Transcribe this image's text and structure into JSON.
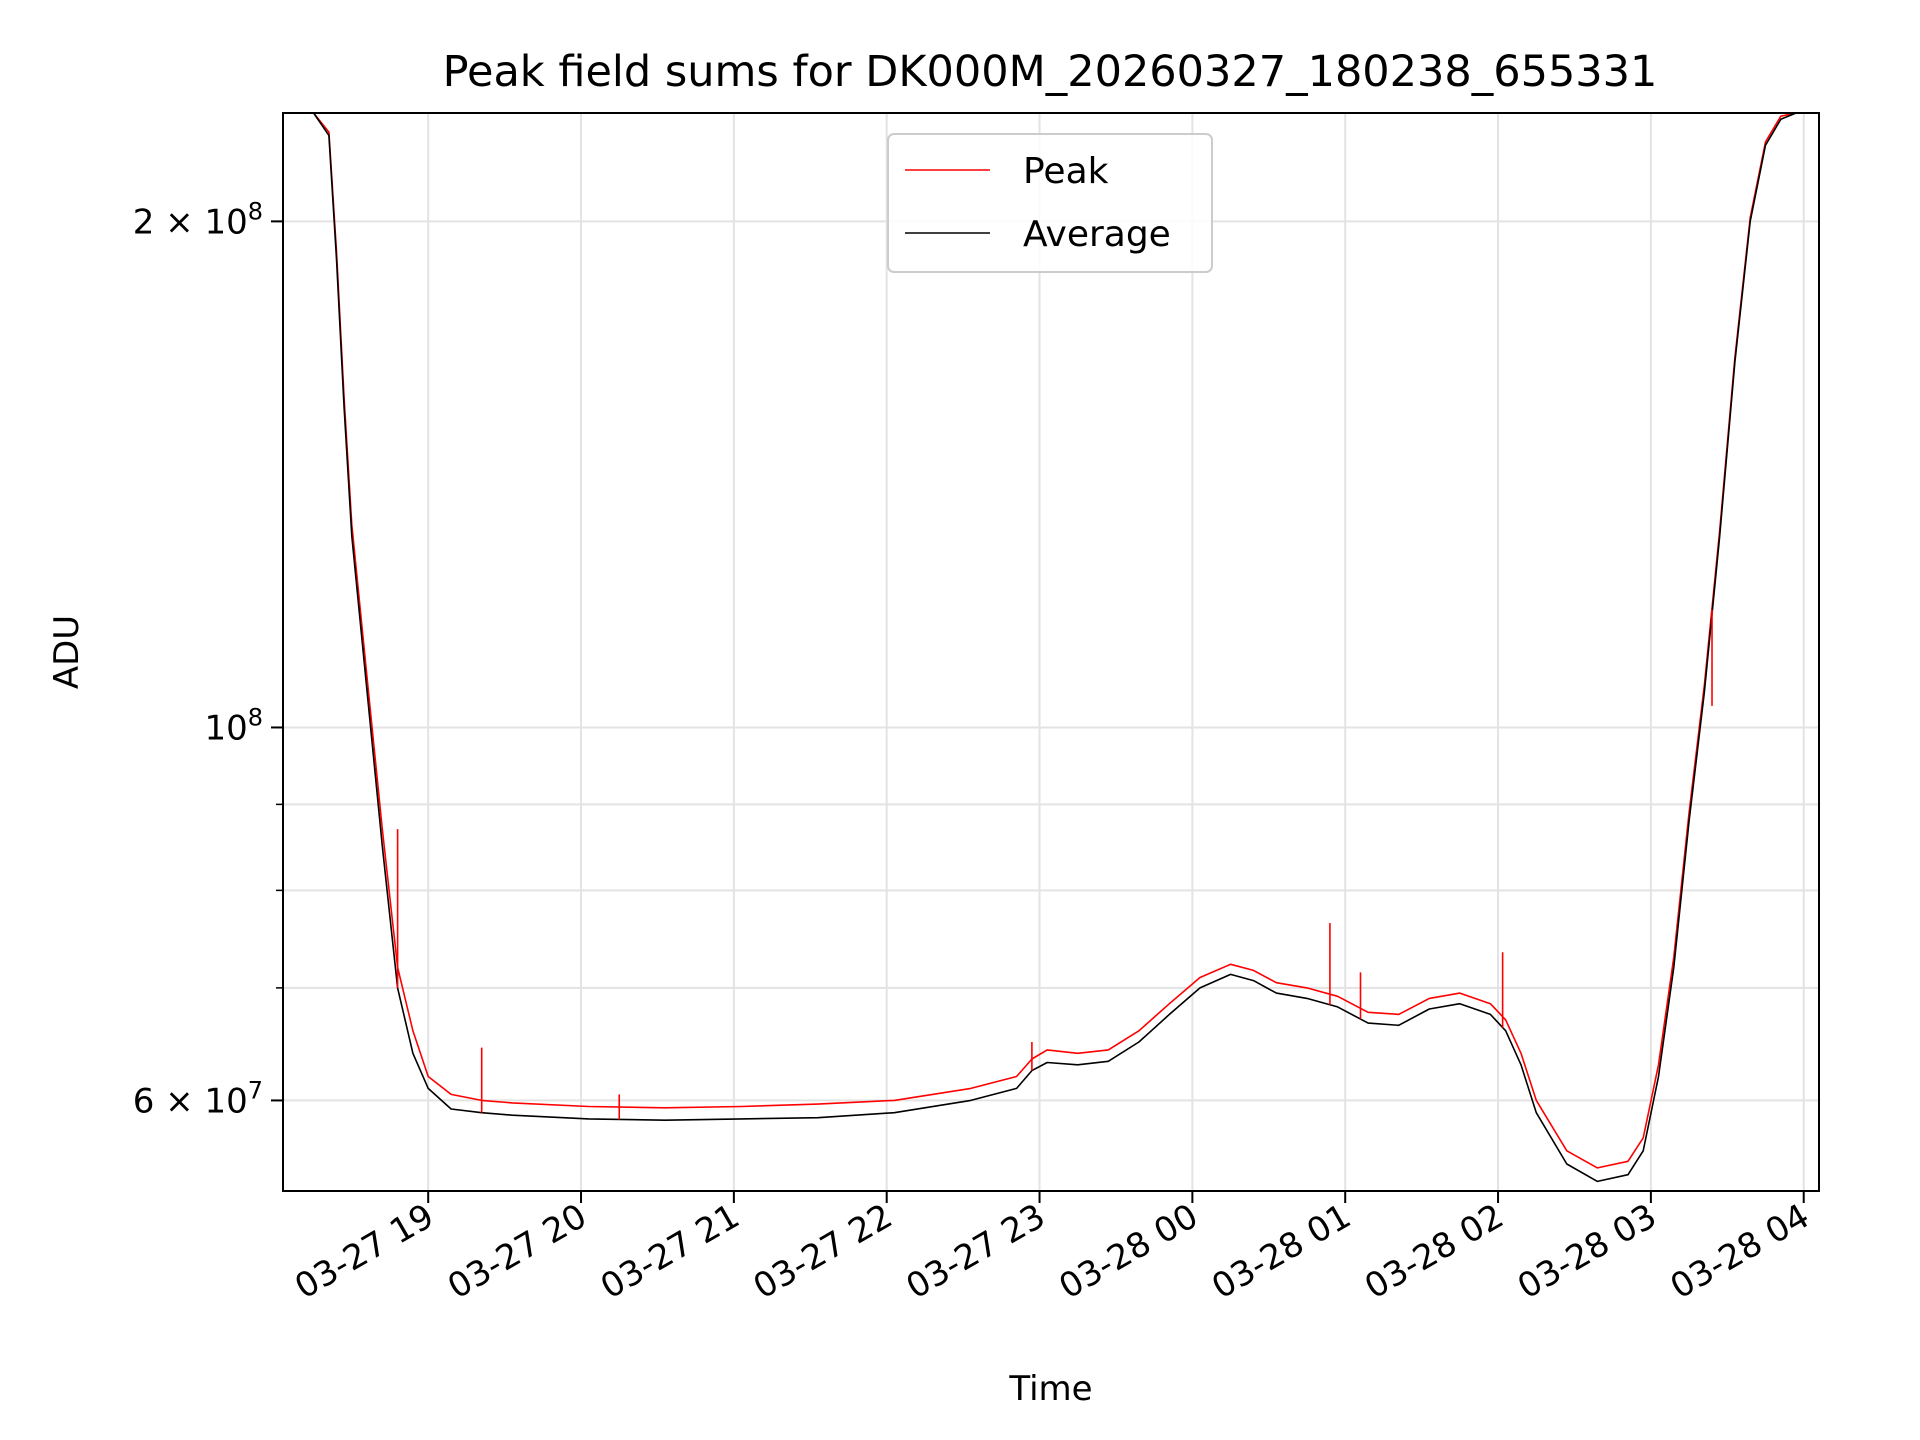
{
  "chart_data": {
    "type": "line",
    "title": "Peak field sums for DK000M_20260327_180238_655331",
    "xlabel": "Time",
    "ylabel": "ADU",
    "yscale": "log",
    "xlim_hours": [
      0.0,
      10.05
    ],
    "ylim": [
      53000000,
      232000000
    ],
    "grid": true,
    "legend_position": "upper-center",
    "x_ticks": [
      {
        "hours": 0.95,
        "label": "03-27 19"
      },
      {
        "hours": 1.95,
        "label": "03-27 20"
      },
      {
        "hours": 2.95,
        "label": "03-27 21"
      },
      {
        "hours": 3.95,
        "label": "03-27 22"
      },
      {
        "hours": 4.95,
        "label": "03-27 23"
      },
      {
        "hours": 5.95,
        "label": "03-28 00"
      },
      {
        "hours": 6.95,
        "label": "03-28 01"
      },
      {
        "hours": 7.95,
        "label": "03-28 02"
      },
      {
        "hours": 8.95,
        "label": "03-28 03"
      },
      {
        "hours": 9.95,
        "label": "03-28 04"
      }
    ],
    "y_ticks_major": [
      {
        "value": 60000000,
        "mantissa": "6 × 10",
        "exp": "7"
      },
      {
        "value": 100000000,
        "mantissa": "10",
        "exp": "8"
      },
      {
        "value": 200000000,
        "mantissa": "2 × 10",
        "exp": "8"
      }
    ],
    "y_ticks_minor": [
      60000000,
      70000000,
      80000000,
      90000000,
      100000000,
      200000000
    ],
    "x_hours": [
      0.0,
      0.2,
      0.3,
      0.35,
      0.4,
      0.45,
      0.55,
      0.65,
      0.75,
      0.85,
      0.95,
      1.1,
      1.3,
      1.5,
      2.0,
      2.5,
      3.0,
      3.5,
      4.0,
      4.5,
      4.8,
      4.9,
      5.0,
      5.2,
      5.4,
      5.6,
      5.8,
      6.0,
      6.2,
      6.35,
      6.5,
      6.7,
      6.9,
      7.1,
      7.3,
      7.5,
      7.7,
      7.9,
      8.0,
      8.1,
      8.2,
      8.4,
      8.6,
      8.8,
      8.9,
      9.0,
      9.1,
      9.2,
      9.3,
      9.4,
      9.5,
      9.6,
      9.7,
      9.8,
      9.9,
      10.05
    ],
    "series": [
      {
        "name": "Average",
        "color": "#000000",
        "values": [
          232000000,
          232000000,
          225000000,
          190000000,
          155000000,
          130000000,
          105000000,
          85000000,
          70000000,
          64000000,
          61000000,
          59300000,
          59000000,
          58800000,
          58500000,
          58400000,
          58500000,
          58600000,
          59000000,
          60000000,
          61000000,
          62500000,
          63200000,
          63000000,
          63300000,
          65000000,
          67500000,
          70000000,
          71300000,
          70700000,
          69500000,
          69000000,
          68200000,
          66700000,
          66500000,
          68000000,
          68500000,
          67500000,
          66000000,
          63000000,
          59000000,
          55000000,
          53700000,
          54200000,
          56000000,
          62000000,
          72000000,
          88000000,
          105000000,
          130000000,
          165000000,
          200000000,
          222000000,
          230000000,
          232000000,
          232000000
        ]
      },
      {
        "name": "Peak",
        "color": "#ff0000",
        "values": [
          232000000,
          232000000,
          226000000,
          192000000,
          157000000,
          132000000,
          107000000,
          87000000,
          72000000,
          66000000,
          62000000,
          60500000,
          60000000,
          59800000,
          59500000,
          59400000,
          59500000,
          59700000,
          60000000,
          61000000,
          62000000,
          63500000,
          64300000,
          64000000,
          64300000,
          66000000,
          68500000,
          71000000,
          72300000,
          71700000,
          70500000,
          70000000,
          69200000,
          67700000,
          67500000,
          69000000,
          69500000,
          68500000,
          67000000,
          64000000,
          60000000,
          56000000,
          54700000,
          55200000,
          57000000,
          63000000,
          73000000,
          89000000,
          106000000,
          131000000,
          166000000,
          201000000,
          223000000,
          231000000,
          232000000,
          232000000
        ]
      }
    ],
    "peak_spikes": [
      {
        "hours": 0.75,
        "value": 87000000
      },
      {
        "hours": 1.3,
        "value": 64500000
      },
      {
        "hours": 2.2,
        "value": 60500000
      },
      {
        "hours": 4.9,
        "value": 65000000
      },
      {
        "hours": 6.85,
        "value": 76500000
      },
      {
        "hours": 7.05,
        "value": 71500000
      },
      {
        "hours": 7.98,
        "value": 73500000
      },
      {
        "hours": 9.35,
        "value": 103000000
      }
    ],
    "legend": [
      {
        "label": "Peak",
        "color": "#ff0000"
      },
      {
        "label": "Average",
        "color": "#000000"
      }
    ]
  }
}
